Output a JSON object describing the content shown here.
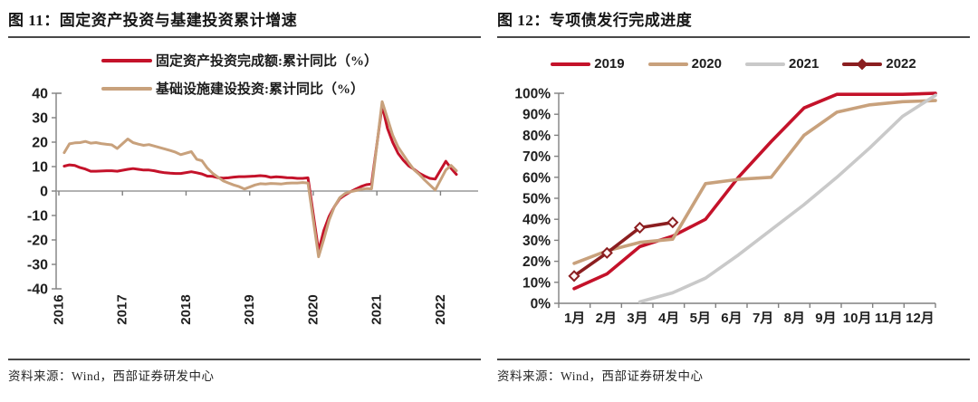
{
  "page": {
    "background": "#ffffff"
  },
  "figures": [
    {
      "title": "图 11：固定资产投资与基建投资累计增速",
      "source": "资料来源：Wind，西部证券研发中心"
    },
    {
      "title": "图 12：专项债发行完成进度",
      "source": "资料来源：Wind，西部证券研发中心"
    }
  ],
  "colors": {
    "bright_red": "#c4122a",
    "tan": "#c8a17c",
    "gray": "#c9c9c9",
    "dark_red": "#8b1e20",
    "axis": "#808080",
    "zero_line": "#999999",
    "tick_text": "#1f1f1f"
  },
  "chart_data": [
    {
      "type": "line",
      "title": "固定资产投资与基建投资累计增速",
      "x_unit": "month",
      "x_range": [
        "2016-01",
        "2022-04"
      ],
      "x_tick_labels": [
        "2016",
        "2017",
        "2018",
        "2019",
        "2020",
        "2021",
        "2022"
      ],
      "ylim": [
        -40,
        40
      ],
      "yticks": [
        40,
        30,
        20,
        10,
        0,
        -10,
        -20,
        -30,
        -40
      ],
      "grid": false,
      "legend_position": "top-center-stacked",
      "series": [
        {
          "key": "fai-yoy",
          "name": "固定资产投资完成额:累计同比（%）",
          "color": "#c4122a",
          "monthly_from": "2016-01",
          "values": [
            null,
            10.2,
            10.7,
            10.5,
            9.6,
            9.0,
            8.1,
            8.1,
            8.2,
            8.3,
            8.3,
            8.1,
            null,
            8.9,
            9.2,
            8.9,
            8.6,
            8.6,
            8.3,
            7.8,
            7.5,
            7.3,
            7.2,
            7.2,
            null,
            7.9,
            7.5,
            7.0,
            6.1,
            6.0,
            5.5,
            5.3,
            5.4,
            5.7,
            5.9,
            5.9,
            null,
            6.1,
            6.3,
            6.1,
            5.6,
            5.8,
            5.7,
            5.5,
            5.4,
            5.2,
            5.2,
            5.4,
            null,
            -24.5,
            -16.1,
            -10.3,
            -6.3,
            -3.1,
            -1.6,
            -0.3,
            0.8,
            1.8,
            2.6,
            2.9,
            null,
            35.0,
            25.6,
            19.9,
            15.4,
            12.6,
            10.3,
            8.9,
            7.3,
            6.1,
            5.2,
            4.9,
            null,
            12.2,
            9.3,
            6.8
          ]
        },
        {
          "key": "infra-yoy",
          "name": "基础设施建设投资:累计同比（%）",
          "color": "#c8a17c",
          "monthly_from": "2016-01",
          "values": [
            null,
            15.7,
            19.3,
            19.7,
            19.8,
            20.3,
            19.6,
            19.8,
            19.4,
            19.1,
            18.9,
            17.4,
            null,
            21.3,
            19.8,
            19.2,
            18.7,
            19.0,
            18.4,
            17.8,
            17.2,
            16.6,
            15.9,
            14.9,
            null,
            16.1,
            13.0,
            12.4,
            9.4,
            7.3,
            5.7,
            4.2,
            3.3,
            2.5,
            1.8,
            0.8,
            null,
            2.5,
            3.0,
            2.9,
            3.1,
            3.0,
            2.9,
            3.2,
            3.3,
            3.3,
            3.5,
            3.3,
            null,
            -26.9,
            -19.7,
            -11.8,
            -6.3,
            -2.7,
            -1.0,
            -0.3,
            0.2,
            0.7,
            1.0,
            0.9,
            null,
            36.6,
            29.7,
            22.8,
            18.0,
            14.8,
            11.6,
            8.7,
            6.8,
            4.5,
            2.5,
            0.4,
            null,
            8.6,
            10.5,
            8.3
          ]
        }
      ]
    },
    {
      "type": "line",
      "title": "专项债发行完成进度",
      "categories": [
        "1月",
        "2月",
        "3月",
        "4月",
        "5月",
        "6月",
        "7月",
        "8月",
        "9月",
        "10月",
        "11月",
        "12月"
      ],
      "ylim": [
        0,
        100
      ],
      "yticks": [
        100,
        90,
        80,
        70,
        60,
        50,
        40,
        30,
        20,
        10,
        0
      ],
      "ytick_suffix": "%",
      "grid": false,
      "legend_position": "top-center-row",
      "series": [
        {
          "key": "y2019",
          "name": "2019",
          "color": "#c4122a",
          "values": [
            7,
            14,
            27,
            32,
            40,
            60,
            77,
            93,
            99.5,
            99.5,
            99.5,
            100
          ]
        },
        {
          "key": "y2020",
          "name": "2020",
          "color": "#c8a17c",
          "values": [
            19,
            25,
            29,
            30.5,
            57,
            59,
            60,
            80,
            91,
            94.5,
            96,
            96.5
          ]
        },
        {
          "key": "y2021",
          "name": "2021",
          "color": "#c9c9c9",
          "values": [
            null,
            null,
            0.7,
            5,
            12,
            23,
            35,
            47,
            60,
            74,
            89,
            99
          ]
        },
        {
          "key": "y2022",
          "name": "2022",
          "color": "#8b1e20",
          "marker": "diamond",
          "values": [
            13,
            24,
            36,
            38.5,
            null,
            null,
            null,
            null,
            null,
            null,
            null,
            null
          ]
        }
      ]
    }
  ]
}
